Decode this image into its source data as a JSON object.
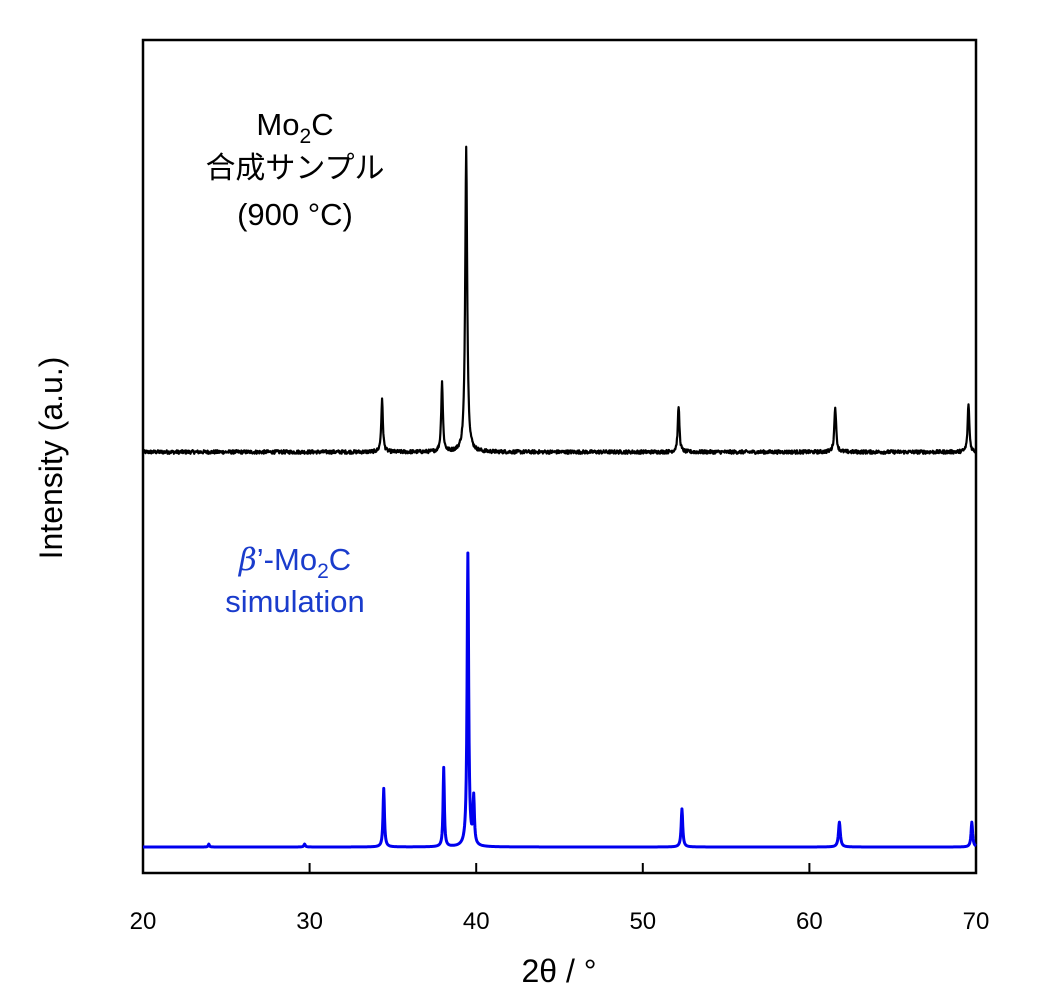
{
  "chart_data": {
    "type": "line",
    "xlabel": "2θ / °",
    "ylabel": "Intensity (a.u.)",
    "xlim": [
      20,
      70
    ],
    "xticks": [
      "20",
      "30",
      "40",
      "50",
      "60",
      "70"
    ],
    "yticks": [],
    "grid": false,
    "series": [
      {
        "id": "sample",
        "color": "#000000",
        "baseline": 0.0,
        "noise": 0.012,
        "peaks": [
          {
            "x": 34.35,
            "height": 0.17,
            "width": 0.12
          },
          {
            "x": 37.95,
            "height": 0.23,
            "width": 0.12
          },
          {
            "x": 39.4,
            "height": 1.0,
            "width": 0.14
          },
          {
            "x": 52.15,
            "height": 0.15,
            "width": 0.12
          },
          {
            "x": 61.55,
            "height": 0.15,
            "width": 0.13
          },
          {
            "x": 69.55,
            "height": 0.16,
            "width": 0.12
          }
        ]
      },
      {
        "id": "simulation",
        "color": "#0000ee",
        "baseline": 0.0,
        "noise": 0.0,
        "peaks": [
          {
            "x": 23.95,
            "height": 0.01,
            "width": 0.08
          },
          {
            "x": 29.7,
            "height": 0.01,
            "width": 0.1
          },
          {
            "x": 34.45,
            "height": 0.2,
            "width": 0.1
          },
          {
            "x": 38.05,
            "height": 0.27,
            "width": 0.09
          },
          {
            "x": 39.5,
            "height": 1.0,
            "width": 0.11
          },
          {
            "x": 39.85,
            "height": 0.16,
            "width": 0.1
          },
          {
            "x": 52.35,
            "height": 0.13,
            "width": 0.11
          },
          {
            "x": 61.8,
            "height": 0.085,
            "width": 0.13
          },
          {
            "x": 69.75,
            "height": 0.085,
            "width": 0.11
          }
        ]
      }
    ],
    "annotations": {
      "sample": {
        "line1_main": "Mo",
        "line1_sub": "2",
        "line1_end": "C",
        "line2": "合成サンプル",
        "line3": "(900 °C)",
        "color": "#000000"
      },
      "simulation": {
        "line1_greek": "β",
        "line1_prime": "’",
        "line1_main": "-Mo",
        "line1_sub": "2",
        "line1_end": "C",
        "line2": "simulation",
        "color": "#1a3ccc"
      }
    }
  }
}
